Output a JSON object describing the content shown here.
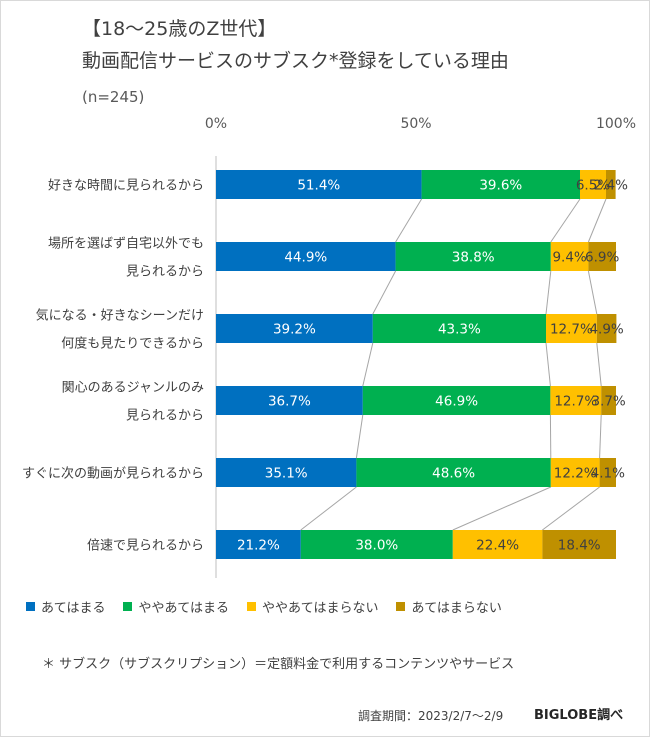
{
  "title_line1": "【18～25歳のZ世代】",
  "title_line2": "動画配信サービスのサブスク*登録をしている理由",
  "sample": "(n=245)",
  "note": "＊ サブスク（サブスクリプション）＝定額料金で利用するコンテンツやサービス",
  "period": "調査期間：2023/2/7～2/9",
  "brand": "BIGLOBE調べ",
  "colors": [
    "#0070c0",
    "#00b050",
    "#ffc000",
    "#bf9000"
  ],
  "chart_data": {
    "type": "bar",
    "orientation": "horizontal",
    "stacked": true,
    "percent_axis": true,
    "x_ticks": [
      "0%",
      "50%",
      "100%"
    ],
    "xlim": [
      0,
      100
    ],
    "categories": [
      [
        "好きな時間に見られるから"
      ],
      [
        "場所を選ばず自宅以外でも",
        "見られるから"
      ],
      [
        "気になる・好きなシーンだけ",
        "何度も見たりできるから"
      ],
      [
        "関心のあるジャンルのみ",
        "見られるから"
      ],
      [
        "すぐに次の動画が見られるから"
      ],
      [
        "倍速で見られるから"
      ]
    ],
    "series": [
      {
        "name": "あてはまる",
        "values": [
          51.4,
          44.9,
          39.2,
          36.7,
          35.1,
          21.2
        ]
      },
      {
        "name": "ややあてはまる",
        "values": [
          39.6,
          38.8,
          43.3,
          46.9,
          48.6,
          38.0
        ]
      },
      {
        "name": "ややあてはまらない",
        "values": [
          6.5,
          9.4,
          12.7,
          12.7,
          12.2,
          22.4
        ]
      },
      {
        "name": "あてはまらない",
        "values": [
          2.4,
          6.9,
          4.9,
          3.7,
          4.1,
          18.4
        ]
      }
    ],
    "legend_position": "bottom",
    "series_lines": true
  }
}
